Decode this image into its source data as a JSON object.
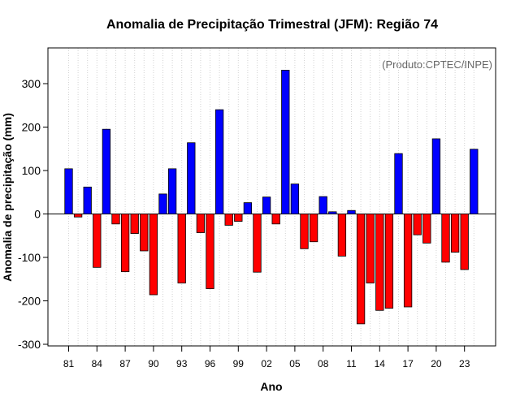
{
  "chart_data": {
    "type": "bar",
    "title": "Anomalia de Precipitação Trimestral (JFM): Região 74",
    "xlabel": "Ano",
    "ylabel": "Anomalia de precipitação (mm)",
    "annotation": "(Produto:CPTEC/INPE)",
    "ylim": [
      -305,
      380
    ],
    "yticks": [
      -300,
      -200,
      -100,
      0,
      100,
      200,
      300
    ],
    "grid": "vertical dotted",
    "positive_color": "#0000ff",
    "negative_color": "#ff0000",
    "years": [
      1981,
      1982,
      1983,
      1984,
      1985,
      1986,
      1987,
      1988,
      1989,
      1990,
      1991,
      1992,
      1993,
      1994,
      1995,
      1996,
      1997,
      1998,
      1999,
      2000,
      2001,
      2002,
      2003,
      2004,
      2005,
      2006,
      2007,
      2008,
      2009,
      2010,
      2011,
      2012,
      2013,
      2014,
      2015,
      2016,
      2017,
      2018,
      2019,
      2020,
      2021,
      2022,
      2023,
      2024
    ],
    "values": [
      104,
      -7,
      62,
      -123,
      195,
      -23,
      -133,
      -45,
      -85,
      -186,
      46,
      104,
      -159,
      164,
      -43,
      -172,
      240,
      -26,
      -17,
      26,
      -134,
      39,
      -23,
      331,
      69,
      -80,
      -64,
      40,
      5,
      -97,
      8,
      -253,
      -159,
      -222,
      -217,
      139,
      -214,
      -48,
      -67,
      173,
      -111,
      -88,
      -128,
      149
    ],
    "xtick_labels": [
      "81",
      "84",
      "87",
      "90",
      "93",
      "96",
      "99",
      "02",
      "05",
      "08",
      "11",
      "14",
      "17",
      "20",
      "23"
    ],
    "xtick_years": [
      1981,
      1984,
      1987,
      1990,
      1993,
      1996,
      1999,
      2002,
      2005,
      2008,
      2011,
      2014,
      2017,
      2020,
      2023
    ]
  }
}
